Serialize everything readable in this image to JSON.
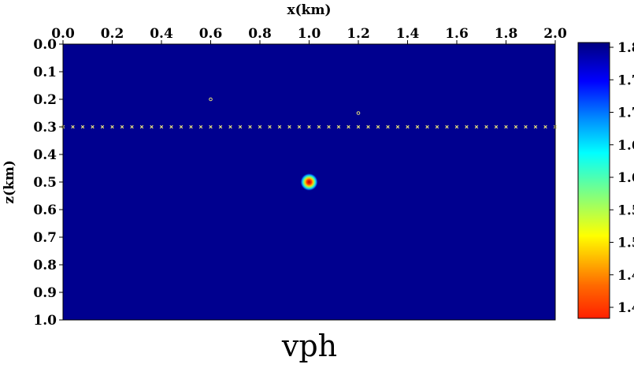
{
  "chart_data": {
    "type": "heatmap",
    "title": "vph",
    "xlabel": "x(km)",
    "ylabel": "z(km)",
    "xlim": [
      0.0,
      2.0
    ],
    "ylim": [
      0.0,
      1.0
    ],
    "x_axis_position": "top",
    "y_axis_inverted": true,
    "x_ticks": [
      "0.0",
      "0.2",
      "0.4",
      "0.6",
      "0.8",
      "1.0",
      "1.2",
      "1.4",
      "1.6",
      "1.8",
      "2.0"
    ],
    "y_ticks": [
      "0.0",
      "0.1",
      "0.2",
      "0.3",
      "0.4",
      "0.5",
      "0.6",
      "0.7",
      "0.8",
      "0.9",
      "1.0"
    ],
    "colorbar": {
      "ticks": [
        "1.8",
        "1.7",
        "1.7",
        "1.6",
        "1.6",
        "1.5",
        "1.5",
        "1.4",
        "1.4"
      ],
      "range": [
        1.36,
        1.8
      ],
      "colormap": "jet",
      "placement": "right"
    },
    "background_value": 1.8,
    "background_color": "#00008f",
    "anomaly": {
      "x": 1.0,
      "z": 0.5,
      "radius": 0.014,
      "min_value": 1.37
    },
    "receivers": {
      "z": 0.3,
      "x_start": 0.0,
      "x_end": 2.0,
      "spacing": 0.04,
      "color": "#e8e27a"
    },
    "sources": [
      {
        "x": 0.6,
        "z": 0.2
      },
      {
        "x": 1.2,
        "z": 0.25
      }
    ]
  }
}
